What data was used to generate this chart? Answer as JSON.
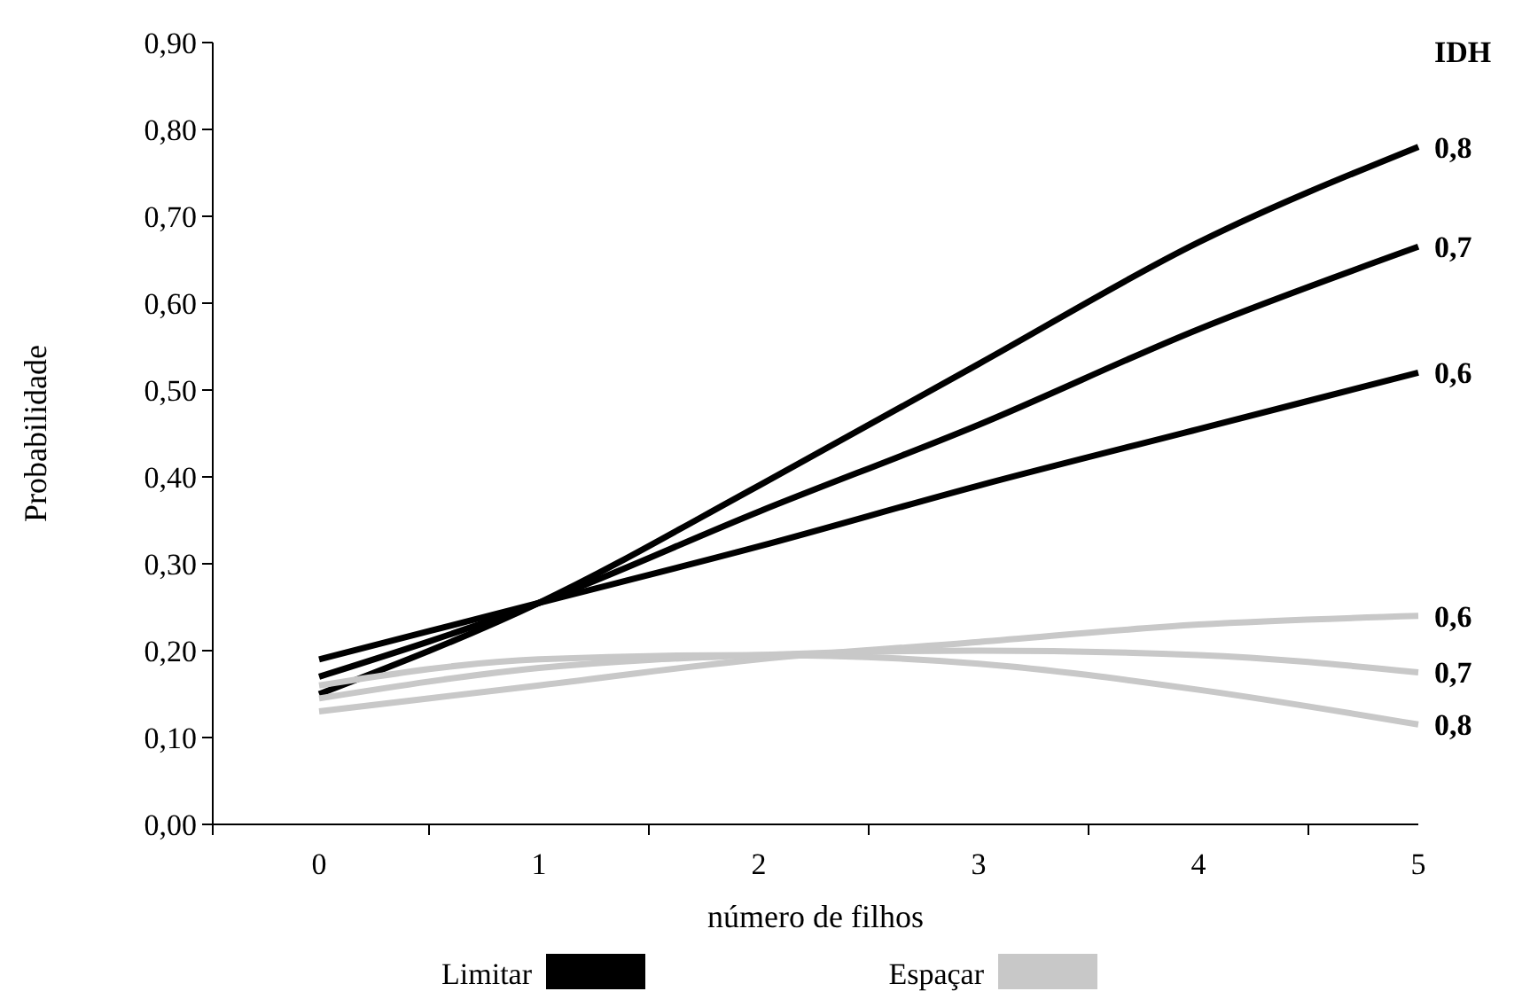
{
  "chart_data": {
    "type": "line",
    "xlabel": "número de filhos",
    "ylabel": "Probabilidade",
    "legend_title": "IDH",
    "categories": [
      "0",
      "1",
      "2",
      "3",
      "4",
      "5"
    ],
    "ylim": [
      0,
      0.9
    ],
    "yticks": [
      {
        "value": 0,
        "label": "0,00"
      },
      {
        "value": 0.1,
        "label": "0,10"
      },
      {
        "value": 0.2,
        "label": "0,20"
      },
      {
        "value": 0.3,
        "label": "0,30"
      },
      {
        "value": 0.4,
        "label": "0,40"
      },
      {
        "value": 0.5,
        "label": "0,50"
      },
      {
        "value": 0.6,
        "label": "0,60"
      },
      {
        "value": 0.7,
        "label": "0,70"
      },
      {
        "value": 0.8,
        "label": "0,80"
      },
      {
        "value": 0.9,
        "label": "0,90"
      }
    ],
    "grid": false,
    "legend": "right",
    "marker": "none",
    "line_style": "solid",
    "series": [
      {
        "name": "0,8",
        "color": "#000000",
        "values": [
          0.15,
          0.255,
          0.39,
          0.53,
          0.67,
          0.78
        ]
      },
      {
        "name": "0,7",
        "color": "#000000",
        "values": [
          0.17,
          0.255,
          0.36,
          0.46,
          0.57,
          0.665
        ]
      },
      {
        "name": "0,6",
        "color": "#000000",
        "values": [
          0.19,
          0.255,
          0.32,
          0.39,
          0.455,
          0.52
        ]
      },
      {
        "name": "0,6",
        "color": "#c8c8c8",
        "values": [
          0.13,
          0.16,
          0.19,
          0.21,
          0.23,
          0.24
        ]
      },
      {
        "name": "0,7",
        "color": "#c8c8c8",
        "values": [
          0.145,
          0.18,
          0.195,
          0.2,
          0.195,
          0.175
        ]
      },
      {
        "name": "0,8",
        "color": "#c8c8c8",
        "values": [
          0.16,
          0.19,
          0.195,
          0.185,
          0.155,
          0.115
        ]
      }
    ],
    "annotations": [
      "Limitar",
      "Espaçar"
    ]
  }
}
